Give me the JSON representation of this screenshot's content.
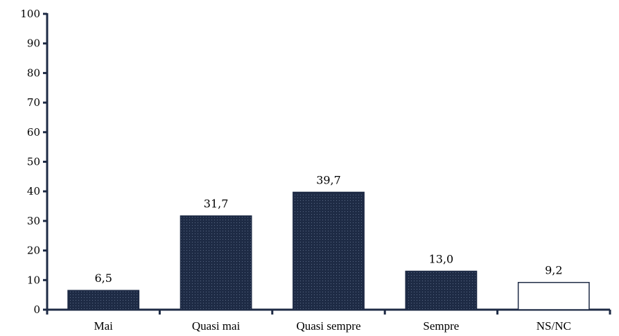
{
  "chart_data": {
    "type": "bar",
    "categories": [
      "Mai",
      "Quasi mai",
      "Quasi sempre",
      "Sempre",
      "NS/NC"
    ],
    "values": [
      6.5,
      31.7,
      39.7,
      13.0,
      9.2
    ],
    "data_labels": [
      "6,5",
      "31,7",
      "39,7",
      "13,0",
      "9,2"
    ],
    "ylim": [
      0,
      100
    ],
    "yticks": [
      0,
      10,
      20,
      30,
      40,
      50,
      60,
      70,
      80,
      90,
      100
    ],
    "title": "",
    "xlabel": "",
    "ylabel": "",
    "grid": false,
    "legend": "none",
    "colors": {
      "bar_fill": "#1e2b45",
      "bar_pattern": "#5a6a86",
      "open_bar_fill": "#ffffff",
      "axis": "#1e2b45"
    },
    "open_bar_categories": [
      "NS/NC"
    ]
  }
}
